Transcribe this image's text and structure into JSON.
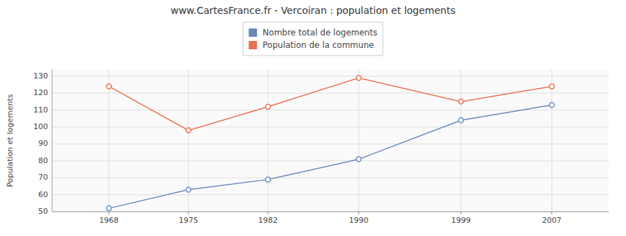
{
  "chart_data": {
    "type": "line",
    "title": "www.CartesFrance.fr - Vercoiran : population et logements",
    "y_label": "Population et logements",
    "x": [
      1968,
      1975,
      1982,
      1990,
      1999,
      2007
    ],
    "series": [
      {
        "name": "Nombre total de logements",
        "color": "#6688bb",
        "marker": "circle",
        "values": [
          52,
          63,
          69,
          81,
          104,
          113
        ]
      },
      {
        "name": "Population de la commune",
        "color": "#e87050",
        "marker": "circle",
        "values": [
          124,
          98,
          112,
          129,
          115,
          124
        ]
      }
    ],
    "xlim": [
      1963,
      2012
    ],
    "xticks": [
      1968,
      1975,
      1982,
      1990,
      1999,
      2007
    ],
    "ylim": [
      50,
      134
    ],
    "yticks": [
      50,
      60,
      70,
      80,
      90,
      100,
      110,
      120,
      130
    ],
    "grid": true,
    "legend": "top"
  }
}
